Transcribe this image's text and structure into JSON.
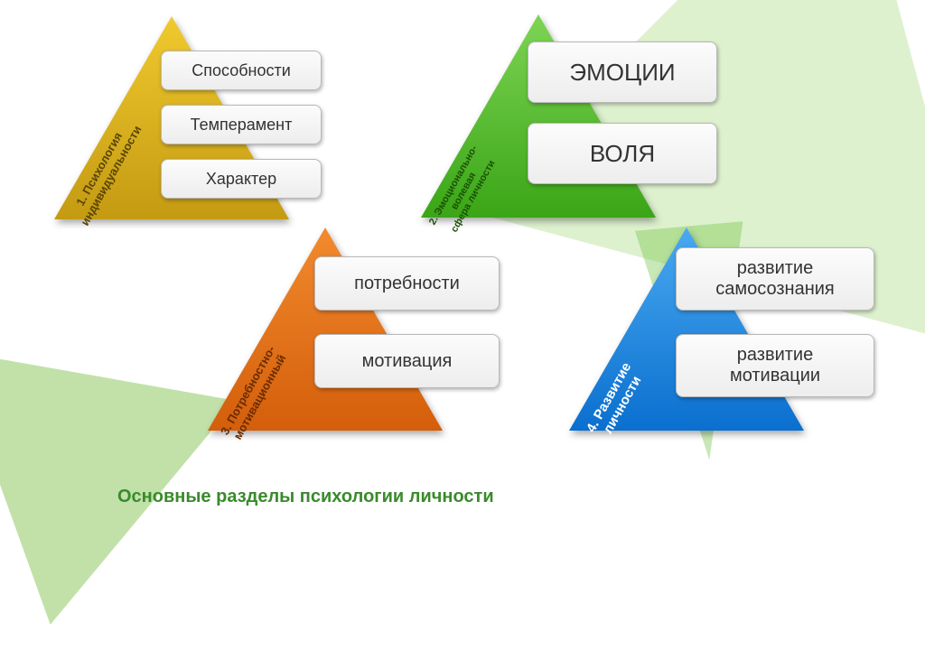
{
  "background": {
    "color": "#ffffff",
    "accent_triangles": [
      "#a8d878",
      "#86c648",
      "#6fb02e"
    ]
  },
  "footer_title": "Основные разделы психологии личности",
  "footer_color": "#3a8a2c",
  "sections": [
    {
      "id": "s1",
      "triangle_color_top": "#f0c92e",
      "triangle_color_bottom": "#c49a12",
      "label": "1. Психология\nиндивидуальности",
      "label_color": "#5a4608",
      "cards": [
        "Способности",
        "Темперамент",
        "Характер"
      ],
      "card_fontsize": 18
    },
    {
      "id": "s2",
      "triangle_color_top": "#7ed455",
      "triangle_color_bottom": "#3aa516",
      "label": "2. Эмоционально-\nволевая\nсфера личности",
      "label_color": "#1a5205",
      "cards": [
        "ЭМОЦИИ",
        "ВОЛЯ"
      ],
      "card_fontsize": 26
    },
    {
      "id": "s3",
      "triangle_color_top": "#f28a2e",
      "triangle_color_bottom": "#d45e0b",
      "label": "3. Потребностно-\nмотивационный",
      "label_color": "#6a2c02",
      "cards": [
        "потребности",
        "мотивация"
      ],
      "card_fontsize": 20
    },
    {
      "id": "s4",
      "triangle_color_top": "#4aa9f0",
      "triangle_color_bottom": "#0a6fcf",
      "label": "4. Развитие\nличности",
      "label_color": "#ffffff",
      "cards": [
        "развитие самосознания",
        "развитие мотивации"
      ],
      "card_fontsize": 20
    }
  ],
  "card_style": {
    "bg_top": "#fcfcfc",
    "bg_bottom": "#ededed",
    "border": "#b8b8b8",
    "text": "#333333"
  }
}
